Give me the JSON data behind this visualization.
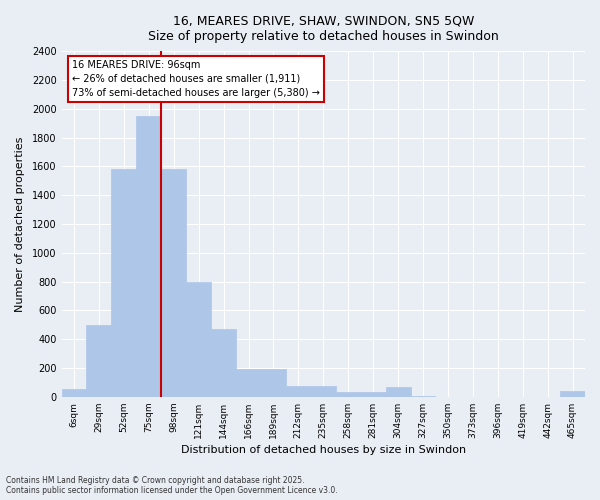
{
  "title": "16, MEARES DRIVE, SHAW, SWINDON, SN5 5QW",
  "subtitle": "Size of property relative to detached houses in Swindon",
  "xlabel": "Distribution of detached houses by size in Swindon",
  "ylabel": "Number of detached properties",
  "footnote1": "Contains HM Land Registry data © Crown copyright and database right 2025.",
  "footnote2": "Contains public sector information licensed under the Open Government Licence v3.0.",
  "bar_labels": [
    "6sqm",
    "29sqm",
    "52sqm",
    "75sqm",
    "98sqm",
    "121sqm",
    "144sqm",
    "166sqm",
    "189sqm",
    "212sqm",
    "235sqm",
    "258sqm",
    "281sqm",
    "304sqm",
    "327sqm",
    "350sqm",
    "373sqm",
    "396sqm",
    "419sqm",
    "442sqm",
    "465sqm"
  ],
  "bar_values": [
    55,
    500,
    1580,
    1950,
    1580,
    800,
    470,
    195,
    195,
    75,
    75,
    30,
    30,
    70,
    5,
    0,
    0,
    0,
    0,
    0,
    40
  ],
  "bar_color": "#aec6e8",
  "bar_edgecolor": "#aec6e8",
  "vline_color": "#cc0000",
  "annotation_title": "16 MEARES DRIVE: 96sqm",
  "annotation_line1": "← 26% of detached houses are smaller (1,911)",
  "annotation_line2": "73% of semi-detached houses are larger (5,380) →",
  "annotation_box_color": "#cc0000",
  "ylim": [
    0,
    2400
  ],
  "yticks": [
    0,
    200,
    400,
    600,
    800,
    1000,
    1200,
    1400,
    1600,
    1800,
    2000,
    2200,
    2400
  ],
  "bg_color": "#e8eef4",
  "plot_bg_color": "#e8eef4",
  "grid_color": "#ffffff"
}
